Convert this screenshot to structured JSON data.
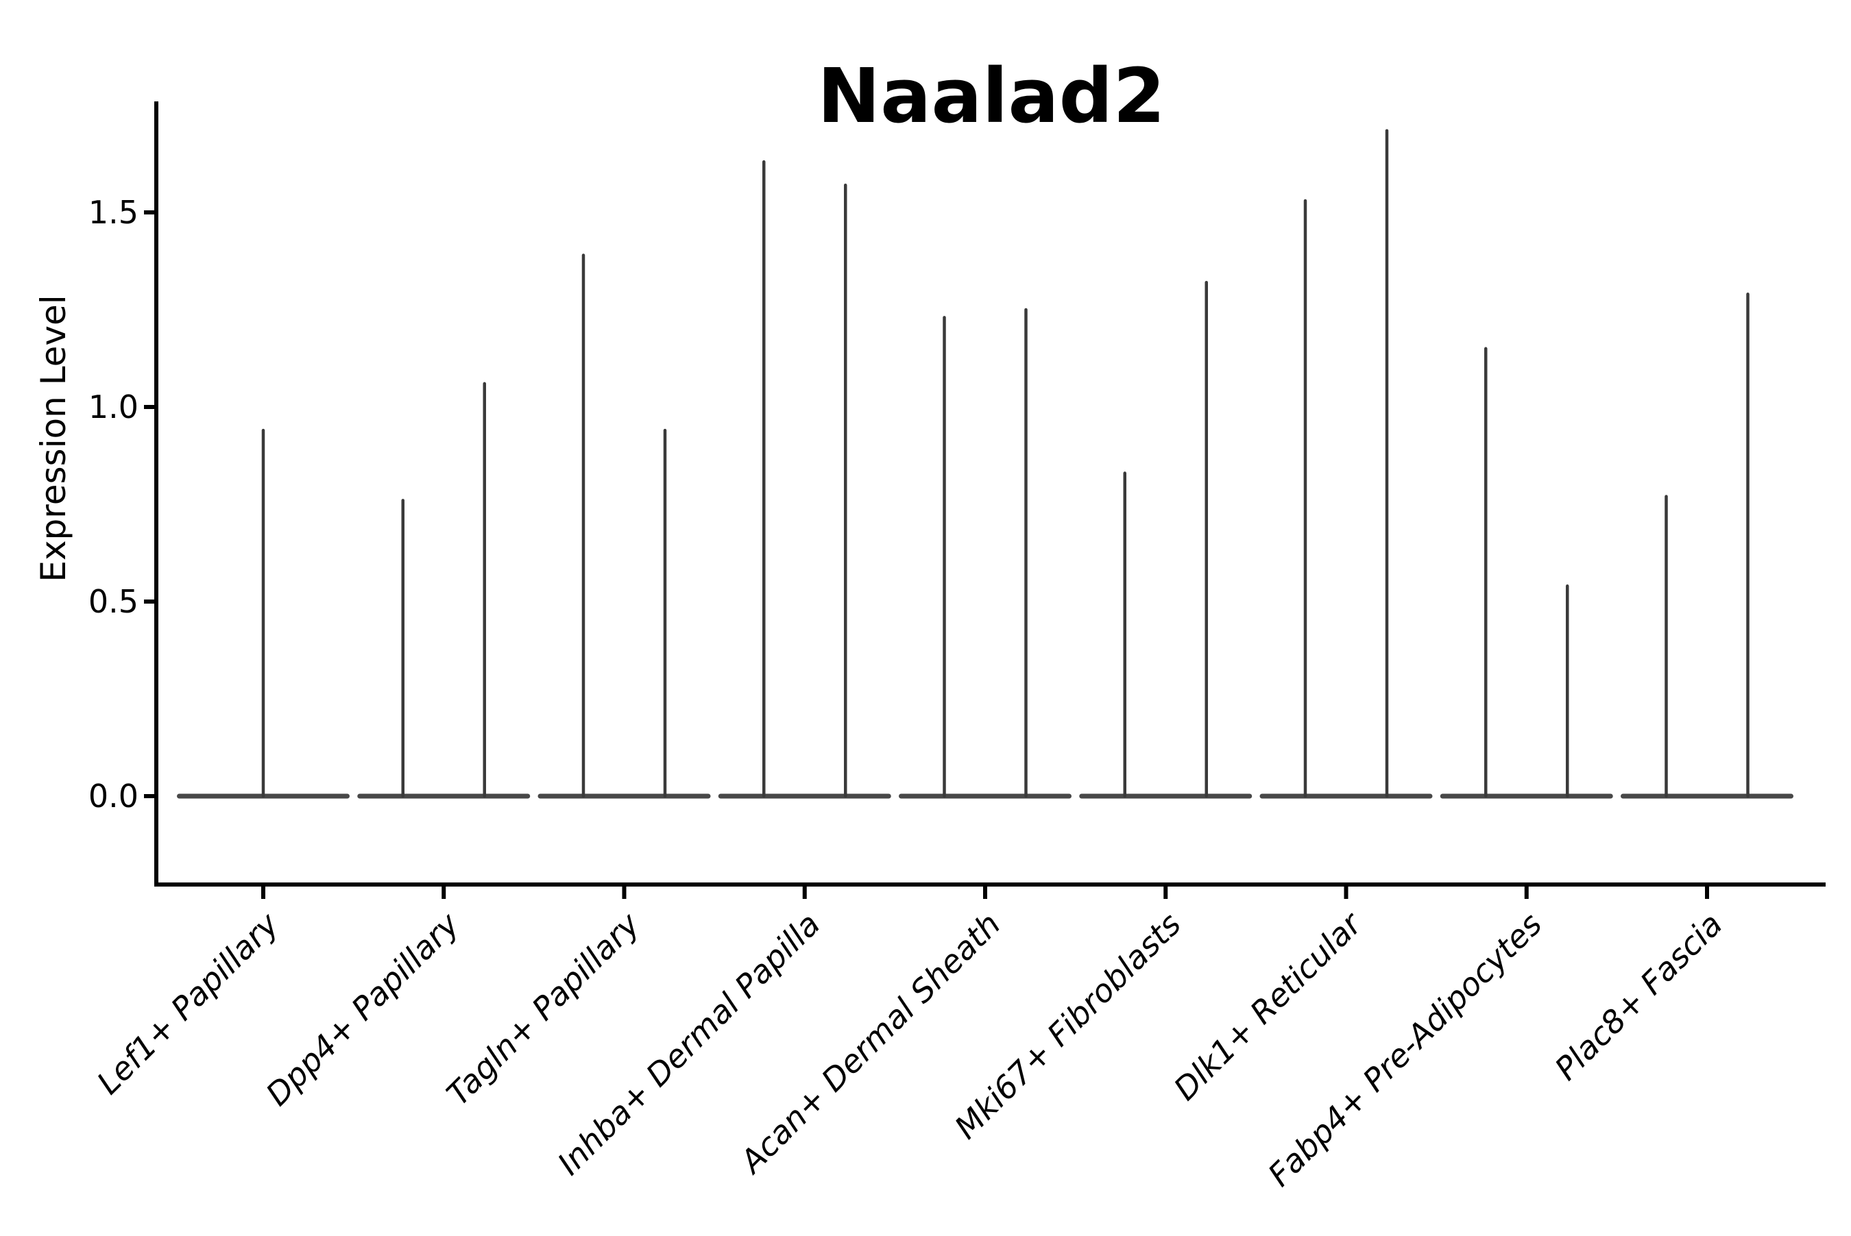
{
  "chart_data": {
    "type": "violin",
    "title": "Naalad2",
    "xlabel": "",
    "ylabel": "Expression Level",
    "yticks": [
      0.0,
      0.5,
      1.0,
      1.5
    ],
    "ylim": [
      -0.23,
      1.79
    ],
    "grid": false,
    "legend": "none",
    "description": "Seurat-style violin plot of gene expression; each cell population shows a flat violin base at expression 0 with hair-thin density spikes rising to the maximum expression values of the sparse expressing cells.",
    "categories": [
      "Lef1+ Papillary",
      "Dpp4+ Papillary",
      "Tagln+ Papillary",
      "Inhba+ Dermal Papilla",
      "Acan+ Dermal Sheath",
      "Mki67+ Fibroblasts",
      "Dlk1+ Reticular",
      "Fabp4+ Pre-Adipocytes",
      "Plac8+ Fascia"
    ],
    "series": [
      {
        "name": "Lef1+ Papillary",
        "baseline_value": 0,
        "spike_peaks": [
          0.94
        ]
      },
      {
        "name": "Dpp4+ Papillary",
        "baseline_value": 0,
        "spike_peaks": [
          0.76,
          1.06
        ]
      },
      {
        "name": "Tagln+ Papillary",
        "baseline_value": 0,
        "spike_peaks": [
          1.39,
          0.94
        ]
      },
      {
        "name": "Inhba+ Dermal Papilla",
        "baseline_value": 0,
        "spike_peaks": [
          1.63,
          1.57
        ]
      },
      {
        "name": "Acan+ Dermal Sheath",
        "baseline_value": 0,
        "spike_peaks": [
          1.23,
          1.25
        ]
      },
      {
        "name": "Mki67+ Fibroblasts",
        "baseline_value": 0,
        "spike_peaks": [
          0.83,
          1.32
        ]
      },
      {
        "name": "Dlk1+ Reticular",
        "baseline_value": 0,
        "spike_peaks": [
          1.53,
          1.71
        ]
      },
      {
        "name": "Fabp4+ Pre-Adipocytes",
        "baseline_value": 0,
        "spike_peaks": [
          1.15,
          0.54
        ]
      },
      {
        "name": "Plac8+ Fascia",
        "baseline_value": 0,
        "spike_peaks": [
          0.77,
          1.29
        ]
      }
    ],
    "colors": {
      "violin_edge": "#3a3a3a",
      "violin_base": "#484848",
      "axis": "#000000",
      "text": "#000000",
      "background": "#ffffff"
    }
  }
}
